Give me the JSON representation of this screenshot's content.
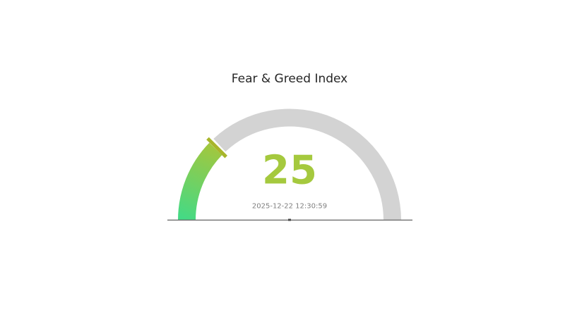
{
  "chart_data": {
    "type": "gauge",
    "title": "Fear & Greed Index",
    "value": 25,
    "min": 0,
    "max": 100,
    "timestamp": "2025-12-22 12:30:59",
    "layout_hints": {
      "orientation": "semicircle-180deg",
      "zero_at": "left",
      "max_at": "right",
      "axis_labels_visible": false
    },
    "colors": {
      "track": "#d3d3d3",
      "bar_gradient_start": "#44da85",
      "bar_gradient_end": "#a2c73e",
      "threshold_tick": "#a8b52b",
      "value_text": "#a5c93e",
      "timestamp_text": "#7f7f7f",
      "title_text": "#262626",
      "baseline": "#6e6e6e",
      "center_mark": "#4a4a4a"
    }
  }
}
